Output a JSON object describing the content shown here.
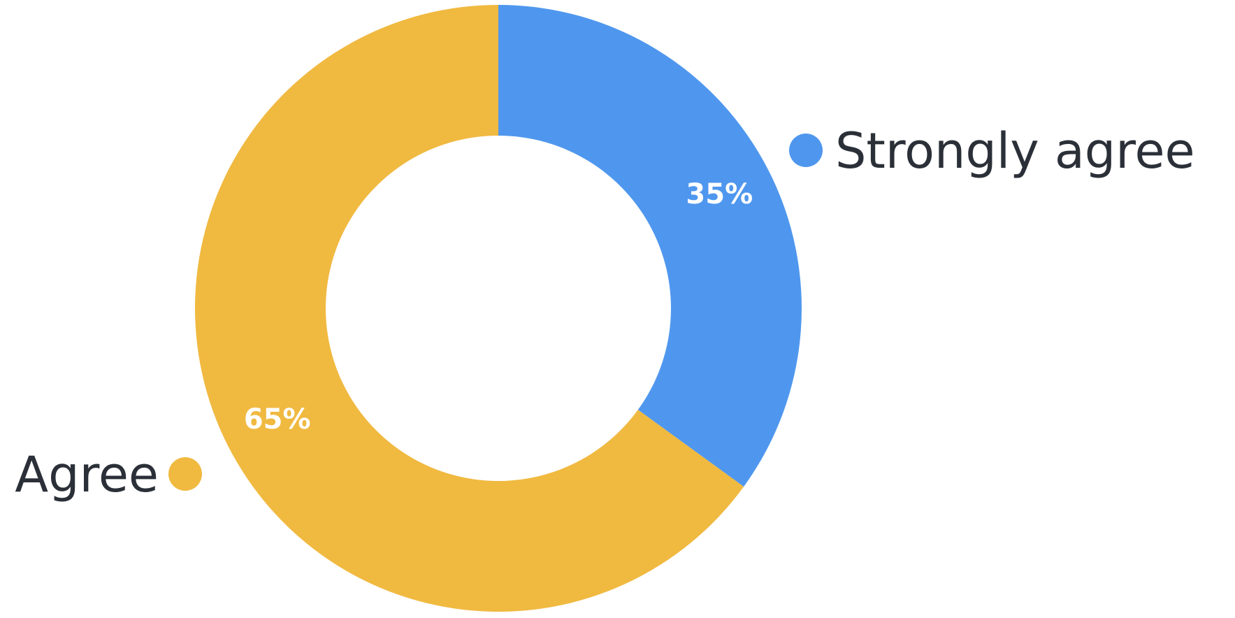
{
  "chart_data": {
    "type": "pie",
    "style": "donut",
    "categories": [
      "Strongly agree",
      "Agree"
    ],
    "values": [
      35,
      65
    ],
    "unit": "%",
    "data_labels": [
      "35%",
      "65%"
    ],
    "colors": [
      "#4f97ee",
      "#f0b940"
    ],
    "legend": "beside-slices"
  }
}
